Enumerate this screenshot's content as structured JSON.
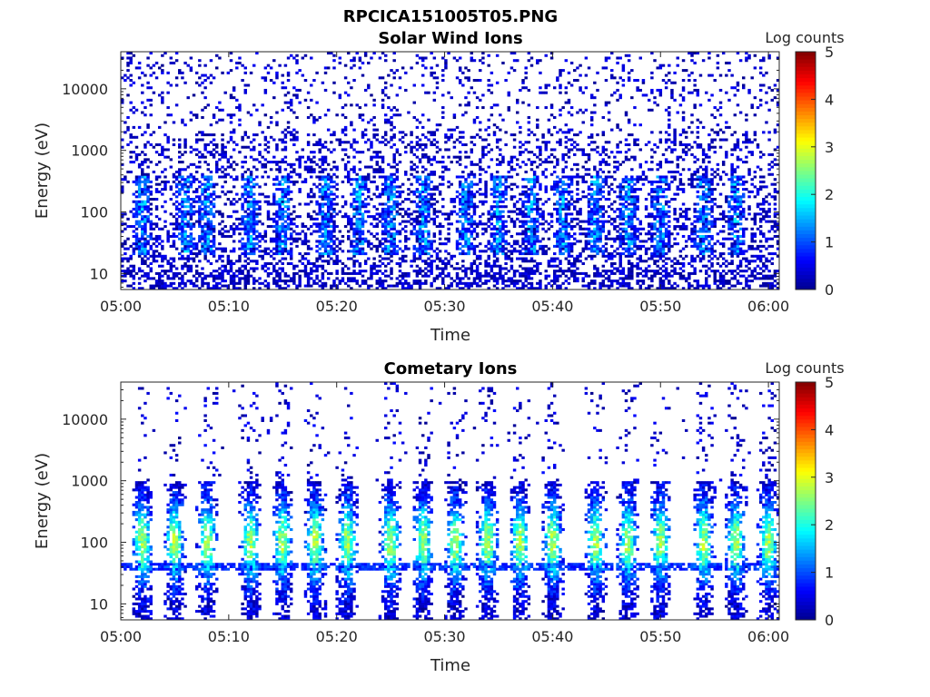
{
  "figure": {
    "title": "RPCICA151005T05.PNG"
  },
  "colors": {
    "colormap": [
      "#00008f",
      "#0000ff",
      "#0080ff",
      "#00ffff",
      "#80ff80",
      "#ffff00",
      "#ff8000",
      "#ff0000",
      "#800000"
    ],
    "axis": "#262626"
  },
  "chart_data": [
    {
      "type": "heatmap",
      "title": "Solar Wind Ions",
      "xlabel": "Time",
      "ylabel": "Energy (eV)",
      "x_range": [
        "05:00",
        "06:01"
      ],
      "x_ticks": [
        "05:00",
        "05:10",
        "05:20",
        "05:30",
        "05:40",
        "05:50",
        "06:00"
      ],
      "y_scale": "log",
      "y_range": [
        5.5,
        40000
      ],
      "y_ticks": [
        10,
        100,
        1000,
        10000
      ],
      "y_tick_labels": [
        "10",
        "100",
        "1000",
        "10000"
      ],
      "colorbar": {
        "label": "Log counts",
        "range": [
          0,
          5
        ],
        "ticks": [
          "0",
          "1",
          "2",
          "3",
          "4",
          "5"
        ]
      },
      "grid": false,
      "pattern": {
        "background_max_log_counts": 1.0,
        "burst_energy_range_eV": [
          20,
          400
        ],
        "burst_peak_log_counts": 2.0,
        "burst_times": [
          "05:02",
          "05:06",
          "05:08",
          "05:12",
          "05:15",
          "05:19",
          "05:22",
          "05:25",
          "05:28",
          "05:32",
          "05:35",
          "05:38",
          "05:41",
          "05:44",
          "05:47",
          "05:50",
          "05:54",
          "05:57"
        ]
      }
    },
    {
      "type": "heatmap",
      "title": "Cometary Ions",
      "xlabel": "Time",
      "ylabel": "Energy (eV)",
      "x_range": [
        "05:00",
        "06:01"
      ],
      "x_ticks": [
        "05:00",
        "05:10",
        "05:20",
        "05:30",
        "05:40",
        "05:50",
        "06:00"
      ],
      "y_scale": "log",
      "y_range": [
        5.5,
        40000
      ],
      "y_ticks": [
        10,
        100,
        1000,
        10000
      ],
      "y_tick_labels": [
        "10",
        "100",
        "1000",
        "10000"
      ],
      "colorbar": {
        "label": "Log counts",
        "range": [
          0,
          5
        ],
        "ticks": [
          "0",
          "1",
          "2",
          "3",
          "4",
          "5"
        ]
      },
      "grid": false,
      "pattern": {
        "band_energy_range_eV": [
          7,
          1000
        ],
        "band_peak_energy_eV": 100,
        "band_peak_log_counts": 2.7,
        "burst_times": [
          "05:02",
          "05:05",
          "05:08",
          "05:12",
          "05:15",
          "05:18",
          "05:21",
          "05:25",
          "05:28",
          "05:31",
          "05:34",
          "05:37",
          "05:40",
          "05:44",
          "05:47",
          "05:50",
          "05:54",
          "05:57",
          "06:00"
        ]
      }
    }
  ]
}
